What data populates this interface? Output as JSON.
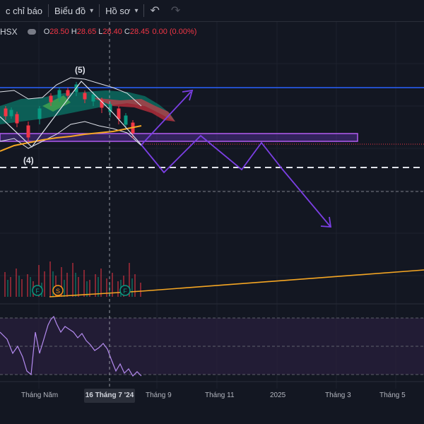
{
  "toolbar": {
    "indicators_label": "c chỉ báo",
    "chart_type_label": "Biểu đồ",
    "profile_label": "Hồ sơ",
    "undo_icon": "↶",
    "redo_icon": "↷"
  },
  "legend": {
    "symbol": "HSX",
    "open_label": "O",
    "open_value": "28.50",
    "high_label": "H",
    "high_value": "28.65",
    "low_label": "L",
    "low_value": "28.40",
    "close_label": "C",
    "close_value": "28.45",
    "change": "0.00 (0.00%)"
  },
  "annotations": {
    "wave5": "(5)",
    "wave4": "(4)",
    "badge_f1": "F",
    "badge_s": "S",
    "badge_f2": "F"
  },
  "xaxis": {
    "labels": [
      "Tháng Năm",
      "Tháng 9",
      "Tháng 11",
      "2025",
      "Tháng 3",
      "Tháng 5"
    ],
    "crosshair_label": "16 Tháng 7 '24"
  },
  "colors": {
    "background": "#131722",
    "down": "#f23645",
    "up": "#089981",
    "projection": "#7b3fe4",
    "ema": "#f5a623",
    "resistance": "#2962ff",
    "rsi": "#b48bf0"
  }
}
